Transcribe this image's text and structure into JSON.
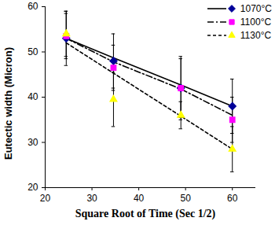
{
  "chart_data": {
    "type": "scatter",
    "x_label": "Square Root of Time (Sec 1/2)",
    "y_label": "Eutectic width (Micron)",
    "x": [
      24.5,
      34.6,
      49,
      60
    ],
    "series": [
      {
        "name": "1070°C",
        "color": "#000099",
        "marker": "diamond",
        "line_style": "solid",
        "values": [
          53,
          48,
          42,
          38
        ],
        "errors": [
          6,
          6,
          6.5,
          6
        ],
        "trend_values": [
          53,
          48.7,
          42.7,
          38
        ]
      },
      {
        "name": "1100°C",
        "color": "#ff00ff",
        "marker": "square",
        "line_style": "dashdot",
        "values": [
          53.5,
          46.5,
          42,
          35
        ],
        "errors": [
          5,
          5,
          7,
          5
        ],
        "trend_values": [
          53,
          47.8,
          41.8,
          36
        ]
      },
      {
        "name": "1130°C",
        "color": "#ffff00",
        "marker": "triangle",
        "line_style": "dashed",
        "values": [
          54,
          39.5,
          36,
          28.5
        ],
        "errors": [
          5,
          6,
          3,
          5
        ],
        "trend_values": [
          52,
          45.3,
          35.8,
          28.5
        ]
      }
    ],
    "xlim": [
      20,
      65
    ],
    "xticks": [
      20,
      30,
      40,
      50,
      60
    ],
    "ylim": [
      20,
      60
    ],
    "yticks": [
      20,
      30,
      40,
      50,
      60
    ],
    "grid": false,
    "legend": "top-right"
  }
}
